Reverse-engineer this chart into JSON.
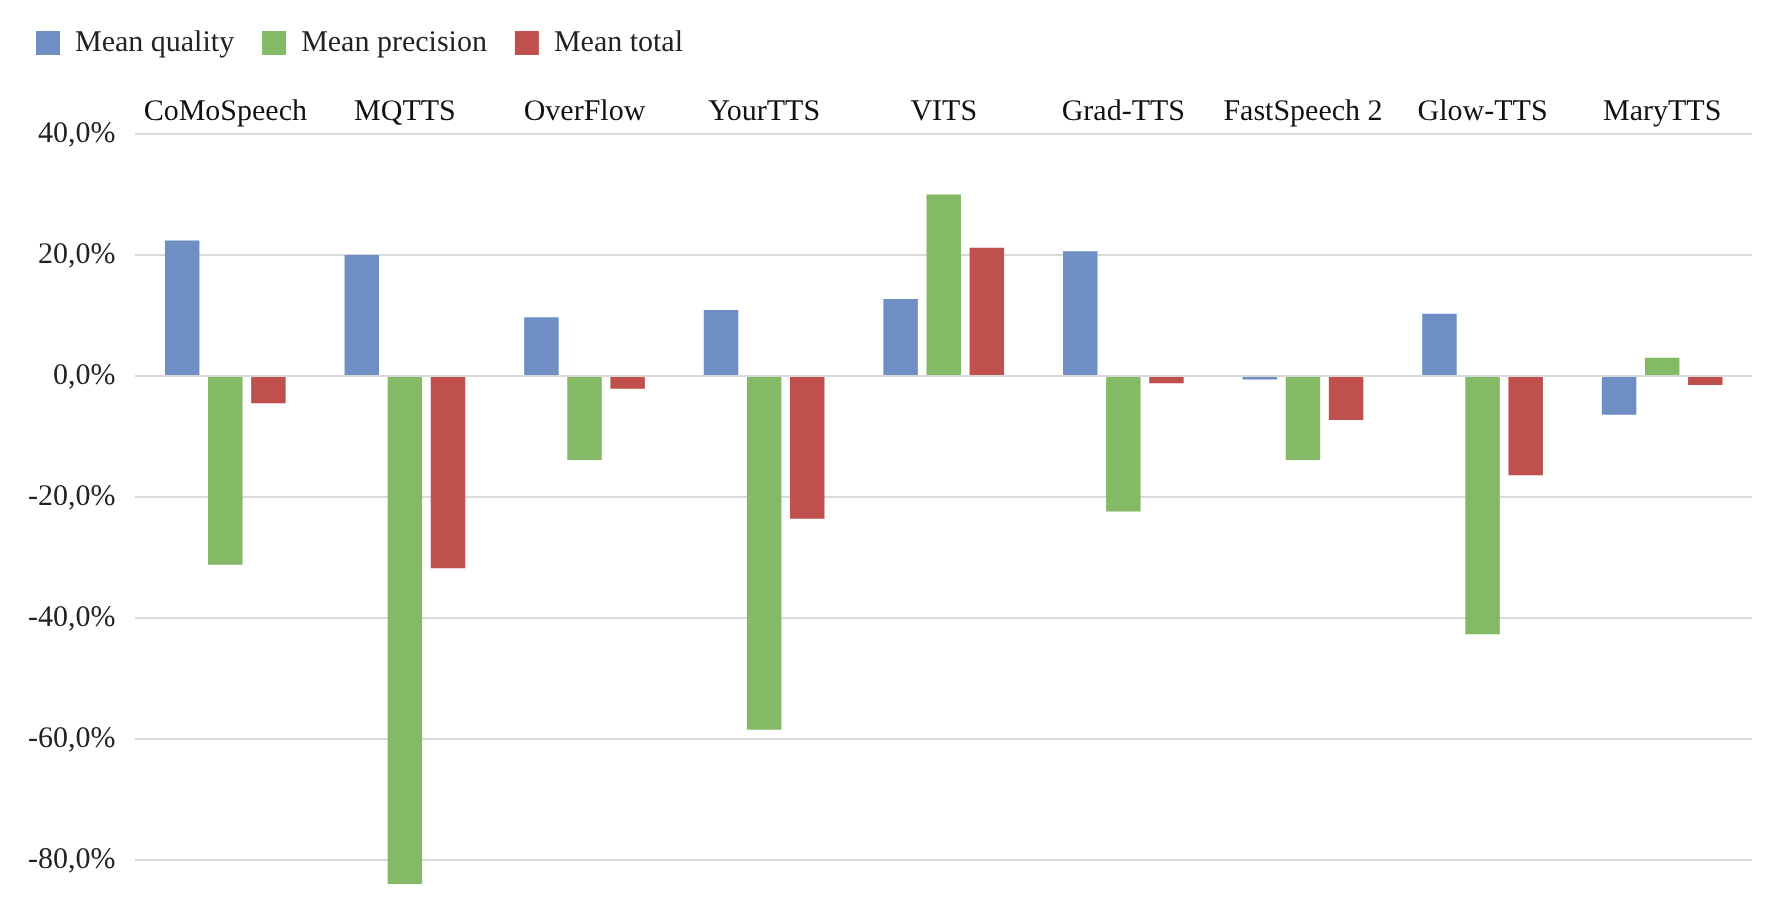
{
  "chart_data": {
    "type": "bar",
    "categories": [
      "CoMoSpeech",
      "MQTTS",
      "OverFlow",
      "YourTTS",
      "VITS",
      "Grad-TTS",
      "FastSpeech 2",
      "Glow-TTS",
      "MaryTTS"
    ],
    "series": [
      {
        "name": "Mean quality",
        "color": "#6f8fc4",
        "values": [
          22.4,
          20.0,
          9.7,
          10.9,
          12.7,
          20.6,
          -0.6,
          10.3,
          -6.4
        ]
      },
      {
        "name": "Mean precision",
        "color": "#84b965",
        "values": [
          -31.2,
          -84,
          -13.9,
          -58.5,
          30.0,
          -22.4,
          -13.9,
          -42.7,
          3.0
        ]
      },
      {
        "name": "Mean total",
        "color": "#c0504d",
        "values": [
          -4.5,
          -31.8,
          -2.1,
          -23.6,
          21.2,
          -1.2,
          -7.3,
          -16.4,
          -1.5
        ]
      }
    ],
    "ylim": [
      -84,
      40
    ],
    "yticks": [
      {
        "value": 40,
        "label": "40,0%"
      },
      {
        "value": 20,
        "label": "20,0%"
      },
      {
        "value": 0,
        "label": "0,0%"
      },
      {
        "value": -20,
        "label": "-20,0%"
      },
      {
        "value": -40,
        "label": "-40,0%"
      },
      {
        "value": -60,
        "label": "-60,0%"
      },
      {
        "value": -80,
        "label": "-80,0%"
      }
    ],
    "grid": "y",
    "legend": "top left"
  }
}
